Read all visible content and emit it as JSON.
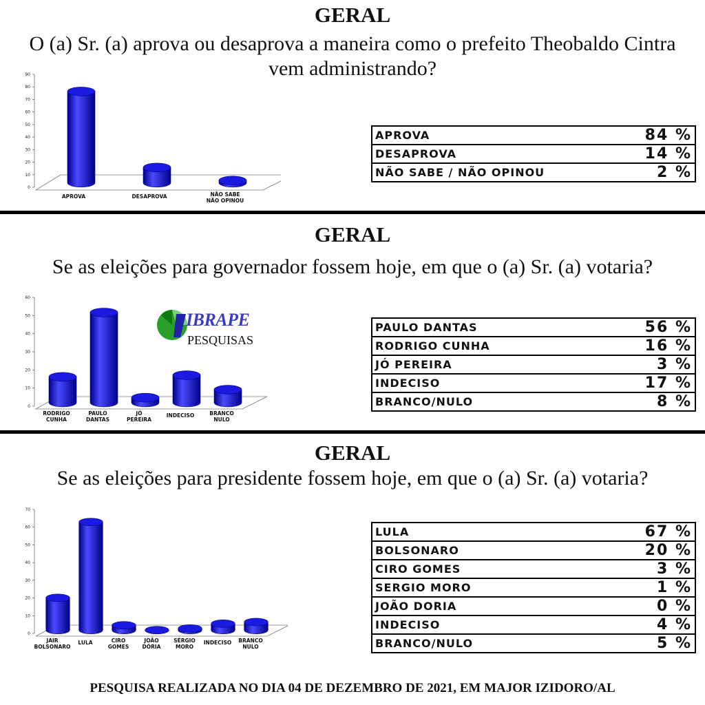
{
  "sections": [
    {
      "heading": "GERAL",
      "question": "O (a) Sr. (a) aprova ou desaprova a maneira como o prefeito Theobaldo Cintra vem administrando?",
      "rows": [
        {
          "label": "APROVA",
          "value": "84 %"
        },
        {
          "label": "DESAPROVA",
          "value": "14 %"
        },
        {
          "label": "NÃO SABE / NÃO OPINOU",
          "value": "2 %"
        }
      ]
    },
    {
      "heading": "GERAL",
      "question": "Se as eleições para governador fossem hoje, em que o (a) Sr. (a) votaria?",
      "rows": [
        {
          "label": "PAULO DANTAS",
          "value": "56 %"
        },
        {
          "label": "RODRIGO CUNHA",
          "value": "16 %"
        },
        {
          "label": "JÓ PEREIRA",
          "value": "3 %"
        },
        {
          "label": "INDECISO",
          "value": "17 %"
        },
        {
          "label": "BRANCO/NULO",
          "value": "8 %"
        }
      ]
    },
    {
      "heading": "GERAL",
      "question": "Se as eleições para presidente fossem hoje, em que o (a) Sr. (a) votaria?",
      "rows": [
        {
          "label": "LULA",
          "value": "67 %"
        },
        {
          "label": "BOLSONARO",
          "value": "20 %"
        },
        {
          "label": "CIRO GOMES",
          "value": "3 %"
        },
        {
          "label": "SERGIO MORO",
          "value": "1 %"
        },
        {
          "label": "JOÃO DORIA",
          "value": "0 %"
        },
        {
          "label": "INDECISO",
          "value": "4 %"
        },
        {
          "label": "BRANCO/NULO",
          "value": "5 %"
        }
      ]
    }
  ],
  "logo": {
    "name": "IBRAPE",
    "sub": "PESQUISAS"
  },
  "footer": "PESQUISA REALIZADA NO DIA 04 DE DEZEMBRO DE 2021, EM MAJOR IZIDORO/AL",
  "colors": {
    "bar": "#1a1ae0",
    "bar_dark": "#00008a",
    "bar_light": "#4a4aff"
  },
  "chart_data": [
    {
      "type": "bar",
      "categories": [
        [
          "APROVA"
        ],
        [
          "DESAPROVA"
        ],
        [
          "NÃO SABE",
          "NÃO OPINOU"
        ]
      ],
      "values": [
        84,
        14,
        2
      ],
      "ylim": [
        0,
        90
      ],
      "yticks": [
        0,
        10,
        20,
        30,
        40,
        50,
        60,
        70,
        80,
        90
      ]
    },
    {
      "type": "bar",
      "categories": [
        [
          "RODRIGO",
          "CUNHA"
        ],
        [
          "PAULO",
          "DANTAS"
        ],
        [
          "JÓ",
          "PEREIRA"
        ],
        [
          "INDECISO"
        ],
        [
          "BRANCO",
          "NULO"
        ]
      ],
      "values": [
        16,
        56,
        3,
        17,
        8
      ],
      "ylim": [
        0,
        60
      ],
      "yticks": [
        0,
        10,
        20,
        30,
        40,
        50,
        60
      ]
    },
    {
      "type": "bar",
      "categories": [
        [
          "JAIR",
          "BOLSONARO"
        ],
        [
          "LULA"
        ],
        [
          "CIRO",
          "GOMES"
        ],
        [
          "JOÃO",
          "DÓRIA"
        ],
        [
          "SÉRGIO",
          "MORO"
        ],
        [
          "INDECISO"
        ],
        [
          "BRANCO",
          "NULO"
        ]
      ],
      "values": [
        20,
        67,
        3,
        0,
        1,
        4,
        5
      ],
      "ylim": [
        0,
        70
      ],
      "yticks": [
        0,
        10,
        20,
        30,
        40,
        50,
        60,
        70
      ]
    }
  ]
}
